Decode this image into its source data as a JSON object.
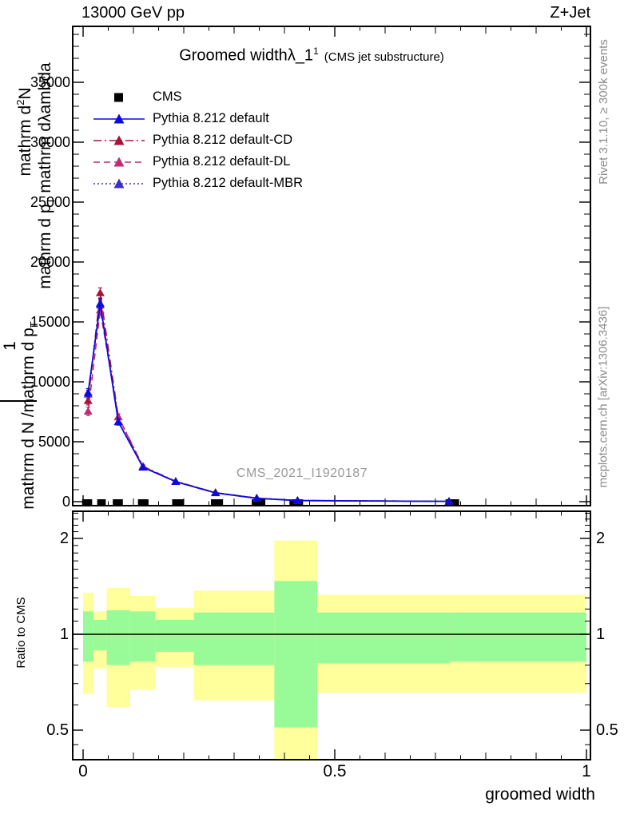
{
  "header": {
    "beam_label": "13000 GeV pp",
    "process_label": "Z+Jet"
  },
  "title": {
    "text": "Groomed width",
    "symbol": "λ_1",
    "superscript": "1",
    "suffix": "(CMS jet substructure)"
  },
  "watermark": "CMS_2021_I1920187",
  "sidebar_right": {
    "top_note": "Rivet 3.1.10, ≥ 300k events",
    "bottom_note": "mcplots.cern.ch [arXiv:1306.3436]"
  },
  "y_axis_title": {
    "frac_lower_num": "1",
    "frac_lower_den_pre": "mathrm d N /mathrm d p",
    "frac_lower_den_sub": "T",
    "frac_upper_num_pre": "mathrm d",
    "frac_upper_num_sup": "2",
    "frac_upper_num_post": "N",
    "frac_upper_den_pre": "mathrm d p",
    "frac_upper_den_sub": "T",
    "frac_upper_den_post": " mathrm dλambda"
  },
  "ratio_axis": {
    "label": "Ratio to CMS"
  },
  "x_axis": {
    "label": "groomed width"
  },
  "legend": {
    "items": [
      {
        "label": "CMS",
        "color": "#000000",
        "marker": "square",
        "line": "none"
      },
      {
        "label": "Pythia 8.212 default",
        "color": "#0b0bdf",
        "marker": "triangle",
        "line": "solid"
      },
      {
        "label": "Pythia 8.212 default-CD",
        "color": "#aa1139",
        "marker": "triangle",
        "line": "dashdot"
      },
      {
        "label": "Pythia 8.212 default-DL",
        "color": "#bc2d72",
        "marker": "triangle",
        "line": "dashed"
      },
      {
        "label": "Pythia 8.212 default-MBR",
        "color": "#3c2fc9",
        "marker": "triangle",
        "line": "dotted"
      }
    ]
  },
  "chart_data": {
    "type": "line",
    "title": "Groomed width λ_1^1 (CMS jet substructure)",
    "xlabel": "groomed width",
    "ylabel": "1/(dN/dp_T) d²N/(dp_T dλ)",
    "xlim": [
      -0.021,
      1.008
    ],
    "ylim": [
      0,
      39700
    ],
    "grid": false,
    "legend_position": "top-left",
    "x": [
      0.01,
      0.034,
      0.07,
      0.119,
      0.184,
      0.263,
      0.345,
      0.426,
      0.727
    ],
    "series": [
      {
        "name": "Pythia 8.212 default",
        "color": "#0b0bdf",
        "line": "solid",
        "marker": "triangle",
        "values": [
          9090,
          16530,
          6670,
          2870,
          1670,
          730,
          280,
          90,
          25
        ]
      },
      {
        "name": "Pythia 8.212 default-CD",
        "color": "#aa1139",
        "line": "dashdot",
        "marker": "triangle",
        "values": [
          8420,
          17420,
          7070,
          2950,
          1700,
          760,
          300,
          100,
          27
        ]
      },
      {
        "name": "Pythia 8.212 default-DL",
        "color": "#bc2d72",
        "line": "dashed",
        "marker": "triangle",
        "values": [
          7530,
          15980,
          7060,
          2920,
          1690,
          750,
          295,
          95,
          26
        ]
      },
      {
        "name": "Pythia 8.212 default-MBR",
        "color": "#3c2fc9",
        "line": "dotted",
        "marker": "triangle",
        "values": [
          8960,
          16400,
          6640,
          2860,
          1665,
          728,
          278,
          89,
          25
        ]
      }
    ],
    "errors": [
      350,
      420,
      260,
      160,
      100,
      60,
      40,
      28,
      18
    ],
    "cms": {
      "name": "CMS",
      "color": "#000000",
      "marker": "square",
      "bins": [
        [
          -0.002,
          0.018
        ],
        [
          0.028,
          0.045
        ],
        [
          0.059,
          0.079
        ],
        [
          0.109,
          0.13
        ],
        [
          0.177,
          0.2
        ],
        [
          0.254,
          0.278
        ],
        [
          0.335,
          0.362
        ],
        [
          0.41,
          0.437
        ],
        [
          0.72,
          0.747
        ]
      ]
    },
    "y_ticks": {
      "major_step": 5000,
      "minor_step": 1000,
      "labels": [
        "0",
        "5000",
        "10000",
        "15000",
        "20000",
        "25000",
        "30000",
        "35000"
      ]
    },
    "x_ticks": {
      "major": [
        0,
        0.5,
        1
      ],
      "labels": [
        "0",
        "0.5",
        "1"
      ],
      "medium_step": 0.1,
      "minor_step": 0.05
    },
    "ratio_panel": {
      "ylabel": "Ratio to CMS",
      "yscale": "log",
      "ylim": [
        0.403,
        2.43
      ],
      "tick_values": [
        0.5,
        1,
        2
      ],
      "tick_labels": [
        "0.5",
        "1",
        "2"
      ],
      "minor_ticks": [
        0.4,
        0.45,
        0.6,
        0.7,
        0.8,
        0.9,
        1.1,
        1.2,
        1.3,
        1.4,
        1.5,
        1.6,
        1.7,
        1.8,
        1.9,
        2.1,
        2.2,
        2.3,
        2.4
      ],
      "baseline": 1,
      "band_colors": {
        "outer": "#ffff9c",
        "inner": "#98fb98"
      },
      "bins": [
        {
          "x0": 0.0,
          "x1": 0.0205,
          "outer_lo": 0.65,
          "outer_hi": 1.35,
          "inner_lo": 0.82,
          "inner_hi": 1.18
        },
        {
          "x0": 0.0205,
          "x1": 0.047,
          "outer_lo": 0.78,
          "outer_hi": 1.18,
          "inner_lo": 0.89,
          "inner_hi": 1.11
        },
        {
          "x0": 0.047,
          "x1": 0.0935,
          "outer_lo": 0.59,
          "outer_hi": 1.4,
          "inner_lo": 0.8,
          "inner_hi": 1.19
        },
        {
          "x0": 0.0935,
          "x1": 0.1435,
          "outer_lo": 0.67,
          "outer_hi": 1.32,
          "inner_lo": 0.82,
          "inner_hi": 1.18
        },
        {
          "x0": 0.1435,
          "x1": 0.22,
          "outer_lo": 0.79,
          "outer_hi": 1.21,
          "inner_lo": 0.88,
          "inner_hi": 1.11
        },
        {
          "x0": 0.22,
          "x1": 0.38,
          "outer_lo": 0.62,
          "outer_hi": 1.37,
          "inner_lo": 0.8,
          "inner_hi": 1.17
        },
        {
          "x0": 0.38,
          "x1": 0.465,
          "outer_lo": 0.4,
          "outer_hi": 1.97,
          "inner_lo": 0.51,
          "inner_hi": 1.47
        },
        {
          "x0": 0.465,
          "x1": 0.73,
          "outer_lo": 0.655,
          "outer_hi": 1.33,
          "inner_lo": 0.81,
          "inner_hi": 1.17
        },
        {
          "x0": 0.73,
          "x1": 1.0,
          "outer_lo": 0.655,
          "outer_hi": 1.33,
          "inner_lo": 0.82,
          "inner_hi": 1.17
        }
      ]
    }
  }
}
